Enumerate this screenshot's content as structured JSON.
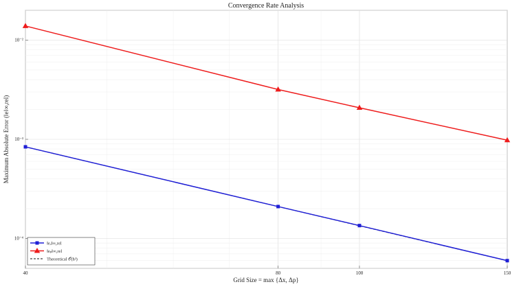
{
  "chart_data": {
    "type": "line",
    "title": "Convergence Rate Analysis",
    "xlabel": "Grid Size = max {Δx, Δp}",
    "ylabel": "Maximum Absolute Error (‖e‖∞,rel)",
    "x_scale": "log",
    "y_scale": "log",
    "xlim": [
      40,
      150
    ],
    "ylim": [
      5e-05,
      0.02
    ],
    "grid": true,
    "legend_position": "bottom-left",
    "x_ticks": [
      {
        "value": 40,
        "label": "40"
      },
      {
        "value": 80,
        "label": "80"
      },
      {
        "value": 100,
        "label": "100"
      },
      {
        "value": 150,
        "label": "150"
      }
    ],
    "y_ticks": [
      {
        "value": 0.01,
        "label": "10⁻²"
      },
      {
        "value": 0.001,
        "label": "10⁻³"
      },
      {
        "value": 0.0001,
        "label": "10⁻⁴"
      }
    ],
    "x": [
      40,
      80,
      100,
      150
    ],
    "series": [
      {
        "name": "‖eₓ‖∞,rel",
        "color": "#1f1fd6",
        "marker": "square",
        "dash": "solid",
        "values": [
          0.00084,
          0.00021,
          0.000135,
          5.98e-05
        ]
      },
      {
        "name": "‖eₚ‖∞,rel",
        "color": "#ee1c1c",
        "marker": "triangle",
        "dash": "solid",
        "values": [
          0.0139,
          0.00318,
          0.00208,
          0.00098
        ]
      },
      {
        "name": "Theoretical 𝒪(h²)",
        "color": "#111111",
        "marker": "none",
        "dash": "dashed",
        "values": [
          0.00084,
          0.00021,
          0.0001344,
          5.97e-05
        ]
      }
    ]
  }
}
